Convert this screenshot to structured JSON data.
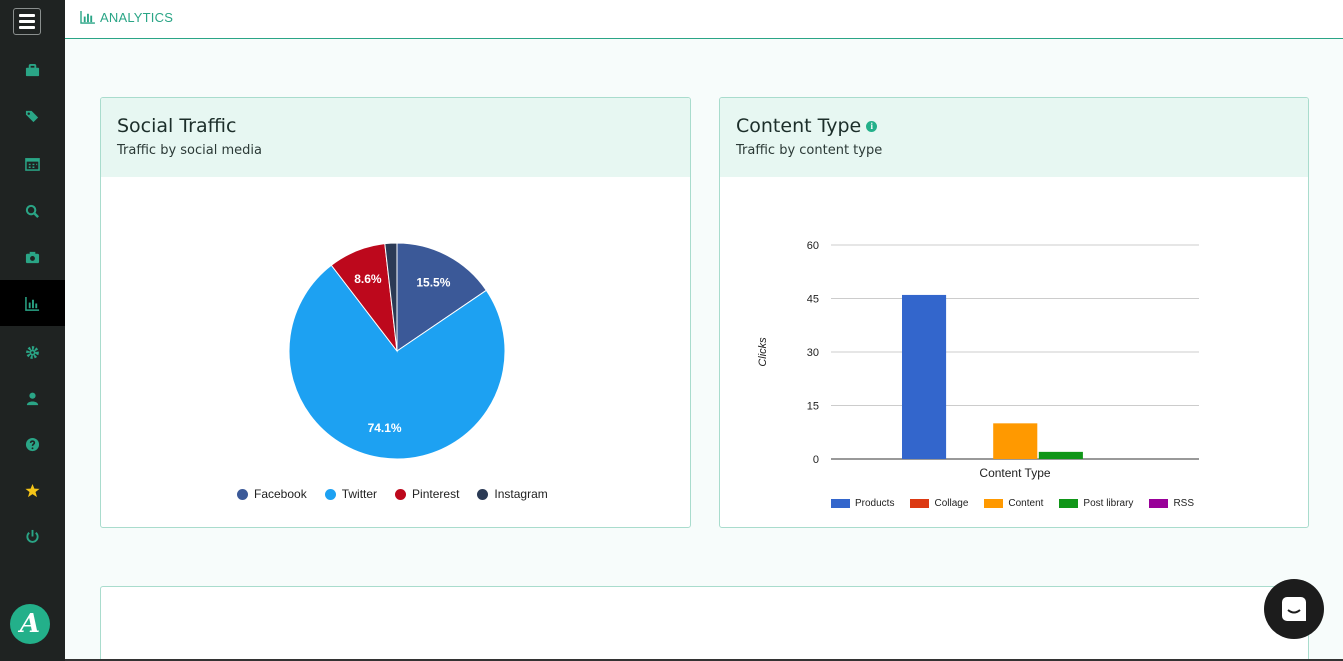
{
  "topbar": {
    "title": "ANALYTICS",
    "icon": "bar-chart-icon"
  },
  "sidebar": {
    "items": [
      {
        "icon": "briefcase-icon",
        "active": false
      },
      {
        "icon": "tags-icon",
        "active": false
      },
      {
        "icon": "calendar-icon",
        "active": false
      },
      {
        "icon": "search-icon",
        "active": false
      },
      {
        "icon": "camera-icon",
        "active": false
      },
      {
        "icon": "bar-chart-icon",
        "active": true
      },
      {
        "icon": "gear-icon",
        "active": false
      },
      {
        "icon": "user-icon",
        "active": false
      },
      {
        "icon": "help-icon",
        "active": false
      },
      {
        "icon": "star-icon",
        "active": false
      },
      {
        "icon": "power-icon",
        "active": false
      }
    ],
    "logo": "A",
    "accent": "#2aa586"
  },
  "social": {
    "title": "Social Traffic",
    "subtitle": "Traffic by social media"
  },
  "content": {
    "title": "Content Type",
    "subtitle": "Traffic by content type"
  },
  "chart_data": [
    {
      "type": "pie",
      "labels": [
        "Facebook",
        "Twitter",
        "Pinterest",
        "Instagram"
      ],
      "values": [
        15.5,
        74.1,
        8.6,
        1.8
      ],
      "slice_labels": [
        "15.5%",
        "74.1%",
        "8.6%",
        ""
      ],
      "colors": [
        "#3b5998",
        "#1da1f2",
        "#bd081c",
        "#2b3a55"
      ],
      "legend": "bottom"
    },
    {
      "type": "bar",
      "categories": [
        "Content Type"
      ],
      "series": [
        {
          "name": "Products",
          "values": [
            46
          ],
          "color": "#3366cc"
        },
        {
          "name": "Collage",
          "values": [
            0
          ],
          "color": "#dc3912"
        },
        {
          "name": "Content",
          "values": [
            10
          ],
          "color": "#ff9900"
        },
        {
          "name": "Post library",
          "values": [
            2
          ],
          "color": "#109618"
        },
        {
          "name": "RSS",
          "values": [
            0
          ],
          "color": "#990099"
        }
      ],
      "xlabel": "Content Type",
      "ylabel": "Clicks",
      "yticks": [
        "60",
        "45",
        "30",
        "15",
        "0"
      ],
      "ylim": [
        0,
        60
      ],
      "grid": true,
      "legend": "bottom"
    }
  ]
}
